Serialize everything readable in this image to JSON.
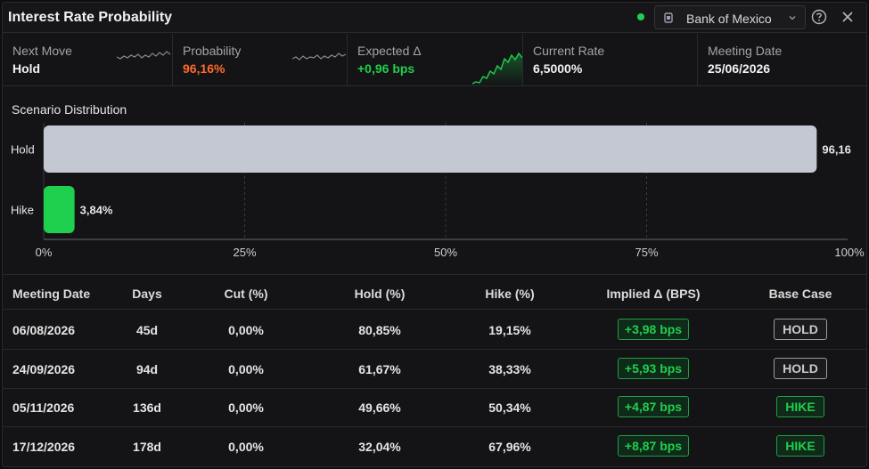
{
  "header": {
    "title": "Interest Rate Probability",
    "bank": "Bank of Mexico",
    "live_color": "#1fcf4e"
  },
  "stats": [
    {
      "label": "Next Move",
      "value": "Hold",
      "color": "#f2f2f2"
    },
    {
      "label": "Probability",
      "value": "96,16%",
      "color": "#ff6a2b"
    },
    {
      "label": "Expected Δ",
      "value": "+0,96 bps",
      "color": "#1fcf4e"
    },
    {
      "label": "Current Rate",
      "value": "6,5000%",
      "color": "#f2f2f2"
    },
    {
      "label": "Meeting Date",
      "value": "25/06/2026",
      "color": "#f2f2f2"
    }
  ],
  "chart_data": {
    "type": "bar",
    "orientation": "horizontal",
    "title": "Scenario Distribution",
    "categories": [
      "Hold",
      "Hike"
    ],
    "values": [
      96.16,
      3.84
    ],
    "value_labels": [
      "96,16",
      "3,84%"
    ],
    "colors": [
      "#c3c8d3",
      "#1fcf4e"
    ],
    "xlim": [
      0,
      100
    ],
    "x_ticks": [
      "0%",
      "25%",
      "50%",
      "75%",
      "100%"
    ],
    "grid": "vertical dashed"
  },
  "table": {
    "headers": [
      "Meeting Date",
      "Days",
      "Cut (%)",
      "Hold (%)",
      "Hike (%)",
      "Implied Δ (BPS)",
      "Base Case"
    ],
    "rows": [
      {
        "date": "06/08/2026",
        "days": "45d",
        "cut": "0,00%",
        "hold": "80,85%",
        "hike": "19,15%",
        "implied": "+3,98 bps",
        "base": "HOLD"
      },
      {
        "date": "24/09/2026",
        "days": "94d",
        "cut": "0,00%",
        "hold": "61,67%",
        "hike": "38,33%",
        "implied": "+5,93 bps",
        "base": "HOLD"
      },
      {
        "date": "05/11/2026",
        "days": "136d",
        "cut": "0,00%",
        "hold": "49,66%",
        "hike": "50,34%",
        "implied": "+4,87 bps",
        "base": "HIKE"
      },
      {
        "date": "17/12/2026",
        "days": "178d",
        "cut": "0,00%",
        "hold": "32,04%",
        "hike": "67,96%",
        "implied": "+8,87 bps",
        "base": "HIKE"
      }
    ]
  }
}
